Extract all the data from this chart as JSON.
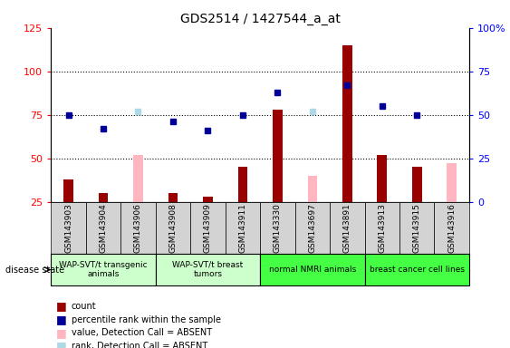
{
  "title": "GDS2514 / 1427544_a_at",
  "samples": [
    "GSM143903",
    "GSM143904",
    "GSM143906",
    "GSM143908",
    "GSM143909",
    "GSM143911",
    "GSM143330",
    "GSM143697",
    "GSM143891",
    "GSM143913",
    "GSM143915",
    "GSM143916"
  ],
  "count": [
    38,
    30,
    0,
    30,
    28,
    45,
    78,
    0,
    115,
    52,
    45,
    0
  ],
  "percentile_rank": [
    50,
    42,
    0,
    46,
    41,
    50,
    63,
    0,
    67,
    55,
    50,
    0
  ],
  "value_absent": [
    0,
    0,
    52,
    0,
    0,
    0,
    0,
    40,
    0,
    0,
    0,
    47
  ],
  "rank_absent": [
    0,
    0,
    52,
    0,
    0,
    0,
    0,
    52,
    0,
    0,
    0,
    0
  ],
  "ylim_left": [
    25,
    125
  ],
  "ylim_right": [
    0,
    100
  ],
  "yticks_left": [
    25,
    50,
    75,
    100,
    125
  ],
  "yticks_right": [
    0,
    25,
    50,
    75,
    100
  ],
  "color_count": "#990000",
  "color_rank": "#000099",
  "color_value_absent": "#FFB6C1",
  "color_rank_absent": "#ADD8E6",
  "disease_state_label": "disease state",
  "groups": [
    {
      "indices": [
        0,
        1,
        2
      ],
      "label": "WAP-SVT/t transgenic\nanimals",
      "color": "#ccffcc"
    },
    {
      "indices": [
        3,
        4,
        5
      ],
      "label": "WAP-SVT/t breast\ntumors",
      "color": "#ccffcc"
    },
    {
      "indices": [
        6,
        7,
        8
      ],
      "label": "normal NMRI animals",
      "color": "#44ff44"
    },
    {
      "indices": [
        9,
        10,
        11
      ],
      "label": "breast cancer cell lines",
      "color": "#44ff44"
    }
  ],
  "title_fontsize": 10,
  "tick_label_fontsize": 6.5,
  "legend_fontsize": 7
}
